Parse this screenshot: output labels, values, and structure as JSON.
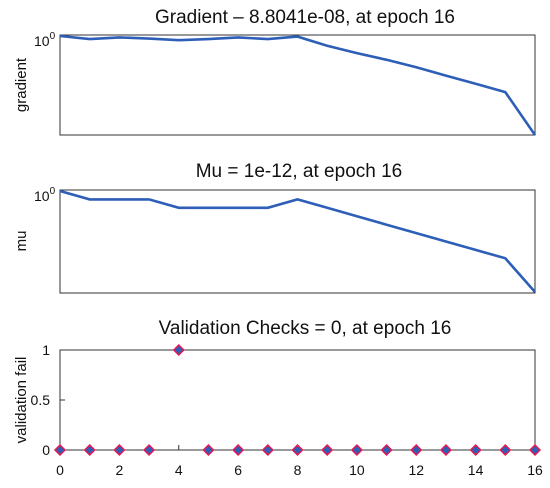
{
  "chart_data": [
    {
      "type": "line",
      "title": "Gradient – 8.8041e-08, at epoch 16",
      "ylabel": "gradient",
      "yscale": "log",
      "ytick_label": "10",
      "ytick_exp": "0",
      "x": [
        0,
        1,
        2,
        3,
        4,
        5,
        6,
        7,
        8,
        9,
        10,
        11,
        12,
        13,
        14,
        15,
        16
      ],
      "values": [
        1.0,
        0.6,
        0.8,
        0.65,
        0.5,
        0.6,
        0.8,
        0.6,
        0.9,
        0.2,
        0.06,
        0.02,
        0.006,
        0.0015,
        0.0004,
        0.0001,
        8.8041e-08
      ],
      "color": "#2e5fb8",
      "grid": false
    },
    {
      "type": "line",
      "title": "Mu = 1e-12, at epoch 16",
      "ylabel": "mu",
      "yscale": "log",
      "ytick_label": "10",
      "ytick_exp": "0",
      "x": [
        0,
        1,
        2,
        3,
        4,
        5,
        6,
        7,
        8,
        9,
        10,
        11,
        12,
        13,
        14,
        15,
        16
      ],
      "values": [
        1.0,
        0.1,
        0.1,
        0.1,
        0.01,
        0.01,
        0.01,
        0.01,
        0.1,
        0.01,
        0.001,
        0.0001,
        1e-05,
        1e-06,
        1e-07,
        1e-08,
        1e-12
      ],
      "color": "#2e5fb8",
      "grid": false
    },
    {
      "type": "scatter",
      "title": "Validation Checks = 0, at epoch 16",
      "ylabel": "validation fail",
      "x": [
        0,
        1,
        2,
        3,
        4,
        5,
        6,
        7,
        8,
        9,
        10,
        11,
        12,
        13,
        14,
        15,
        16
      ],
      "values": [
        0,
        0,
        0,
        0,
        1,
        0,
        0,
        0,
        0,
        0,
        0,
        0,
        0,
        0,
        0,
        0,
        0
      ],
      "ylim": [
        0,
        1
      ],
      "yticks": [
        "0",
        "0.5",
        "1"
      ],
      "xticks": [
        "0",
        "2",
        "4",
        "6",
        "8",
        "10",
        "12",
        "14",
        "16"
      ],
      "marker_fill": "#2e5fb8",
      "marker_edge": "#e8174f",
      "grid": false
    }
  ]
}
